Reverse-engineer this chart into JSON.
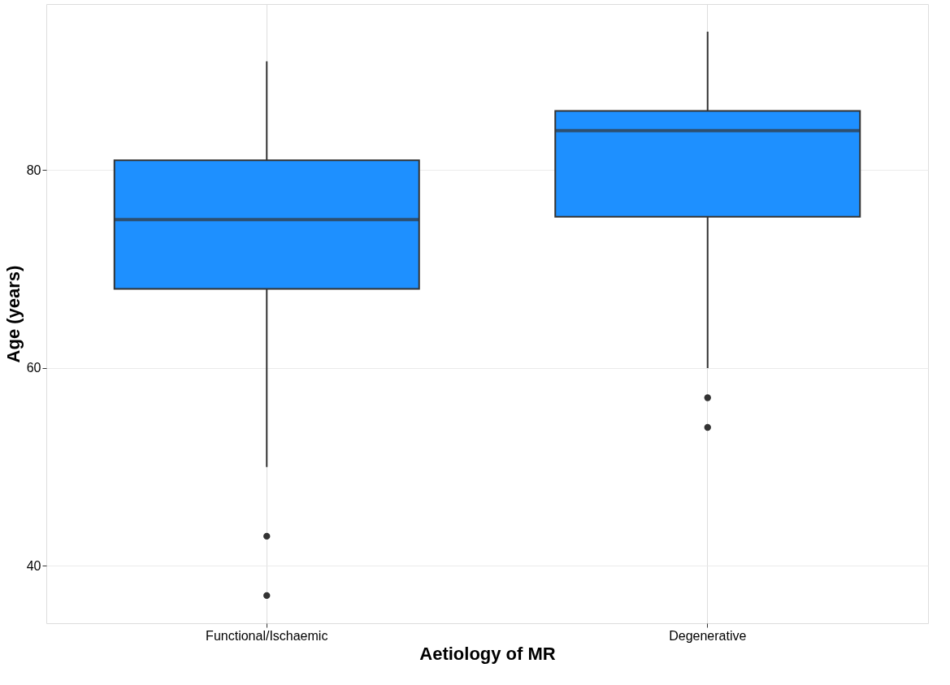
{
  "chart_data": {
    "type": "box",
    "xlabel": "Aetiology of MR",
    "ylabel": "Age (years)",
    "categories": [
      "Functional/Ischaemic",
      "Degenerative"
    ],
    "series": [
      {
        "color": "#1e90ff",
        "boxes": [
          {
            "low": 50,
            "q1": 68,
            "median": 75,
            "q3": 81,
            "high": 91,
            "outliers": [
              43,
              37
            ]
          },
          {
            "low": 60,
            "q1": 75.3,
            "median": 84,
            "q3": 86,
            "high": 94,
            "outliers": [
              57,
              54
            ]
          }
        ]
      }
    ],
    "ylim": [
      34.2,
      96.8
    ],
    "yticks": [
      40,
      60,
      80
    ],
    "grid": true
  }
}
